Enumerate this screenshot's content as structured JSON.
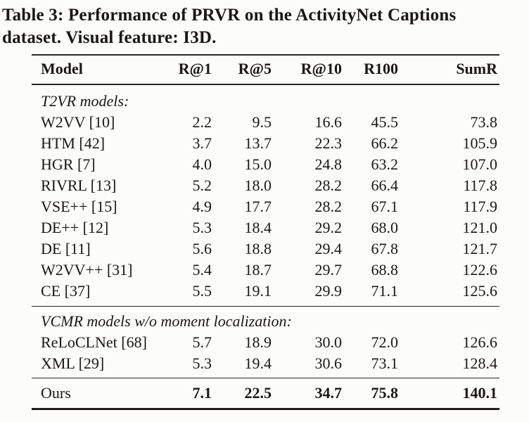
{
  "caption": {
    "lines": [
      "Table 3: Performance of PRVR on the ActivityNet Captions",
      "dataset. Visual feature: I3D."
    ]
  },
  "table": {
    "columns": [
      "Model",
      "R@1",
      "R@5",
      "R@10",
      "R100",
      "SumR"
    ],
    "sections": [
      {
        "heading": "T2VR models:",
        "rows": [
          {
            "model": "W2VV [10]",
            "values": [
              "2.2",
              "9.5",
              "16.6",
              "45.5",
              "73.8"
            ]
          },
          {
            "model": "HTM [42]",
            "values": [
              "3.7",
              "13.7",
              "22.3",
              "66.2",
              "105.9"
            ]
          },
          {
            "model": "HGR [7]",
            "values": [
              "4.0",
              "15.0",
              "24.8",
              "63.2",
              "107.0"
            ]
          },
          {
            "model": "RIVRL [13]",
            "values": [
              "5.2",
              "18.0",
              "28.2",
              "66.4",
              "117.8"
            ]
          },
          {
            "model": "VSE++ [15]",
            "values": [
              "4.9",
              "17.7",
              "28.2",
              "67.1",
              "117.9"
            ]
          },
          {
            "model": "DE++ [12]",
            "values": [
              "5.3",
              "18.4",
              "29.2",
              "68.0",
              "121.0"
            ]
          },
          {
            "model": "DE [11]",
            "values": [
              "5.6",
              "18.8",
              "29.4",
              "67.8",
              "121.7"
            ]
          },
          {
            "model": "W2VV++ [31]",
            "values": [
              "5.4",
              "18.7",
              "29.7",
              "68.8",
              "122.6"
            ]
          },
          {
            "model": "CE [37]",
            "values": [
              "5.5",
              "19.1",
              "29.9",
              "71.1",
              "125.6"
            ]
          }
        ]
      },
      {
        "heading": "VCMR models w/o moment localization:",
        "rows": [
          {
            "model": "ReLoCLNet [68]",
            "values": [
              "5.7",
              "18.9",
              "30.0",
              "72.0",
              "126.6"
            ]
          },
          {
            "model": "XML [29]",
            "values": [
              "5.3",
              "19.4",
              "30.6",
              "73.1",
              "128.4"
            ]
          }
        ]
      },
      {
        "heading": "",
        "rows": [
          {
            "model": "Ours",
            "values": [
              "7.1",
              "22.5",
              "34.7",
              "75.8",
              "140.1"
            ],
            "bold_values": true
          }
        ]
      }
    ]
  },
  "colors": {
    "background": "#fcfcfb",
    "text": "#1a1815",
    "rule": "#2b2722"
  }
}
